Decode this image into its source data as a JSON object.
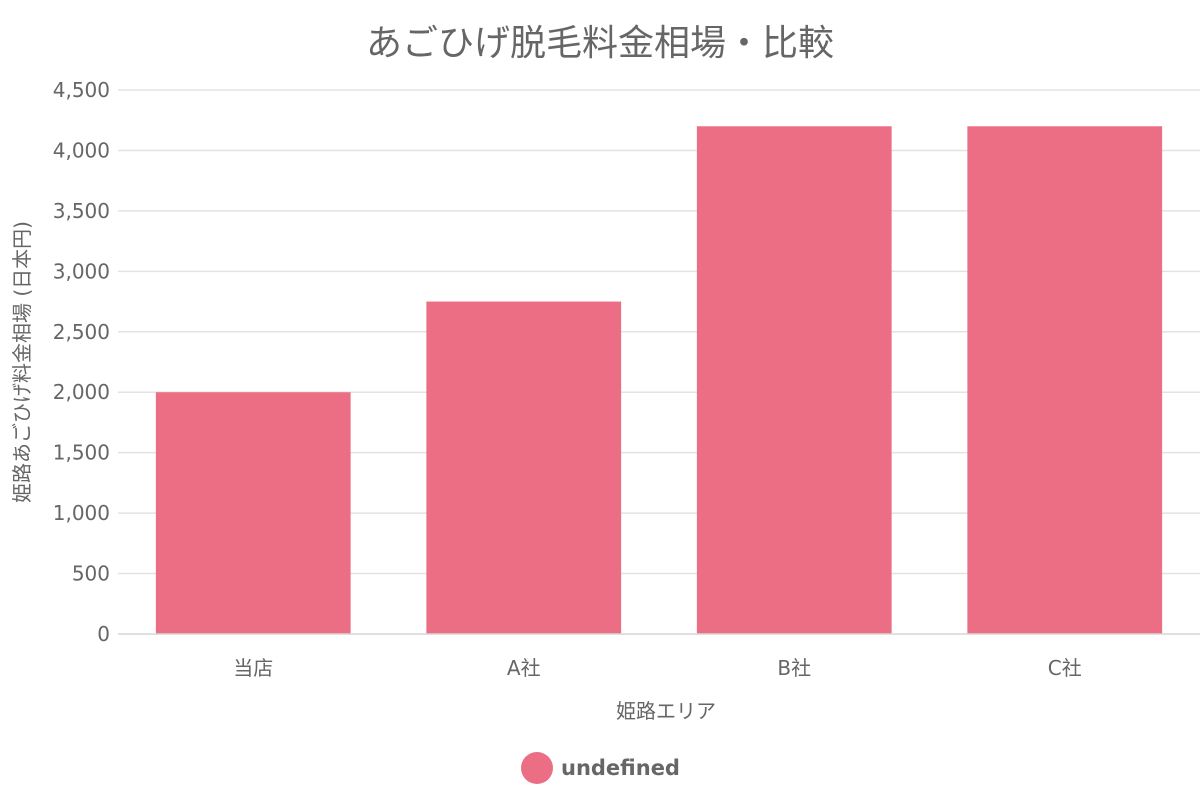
{
  "chart_data": {
    "type": "bar",
    "title": "あごひげ脱毛料金相場・比較",
    "xlabel": "姫路エリア",
    "ylabel": "姫路あごひげ料金相場 (日本円)",
    "categories": [
      "当店",
      "A社",
      "B社",
      "C社"
    ],
    "series": [
      {
        "name": "undefined",
        "values": [
          2000,
          2750,
          4200,
          4200
        ]
      }
    ],
    "ylim": [
      0,
      4500
    ],
    "yticks": [
      0,
      500,
      1000,
      1500,
      2000,
      2500,
      3000,
      3500,
      4000,
      4500
    ],
    "ytick_labels": [
      "0",
      "500",
      "1,000",
      "1,500",
      "2,000",
      "2,500",
      "3,000",
      "3,500",
      "4,000",
      "4,500"
    ],
    "grid": true,
    "legend_position": "bottom",
    "colors": {
      "bar": "#ec6e84",
      "text": "#666666",
      "grid": "#e3e3e3"
    }
  }
}
